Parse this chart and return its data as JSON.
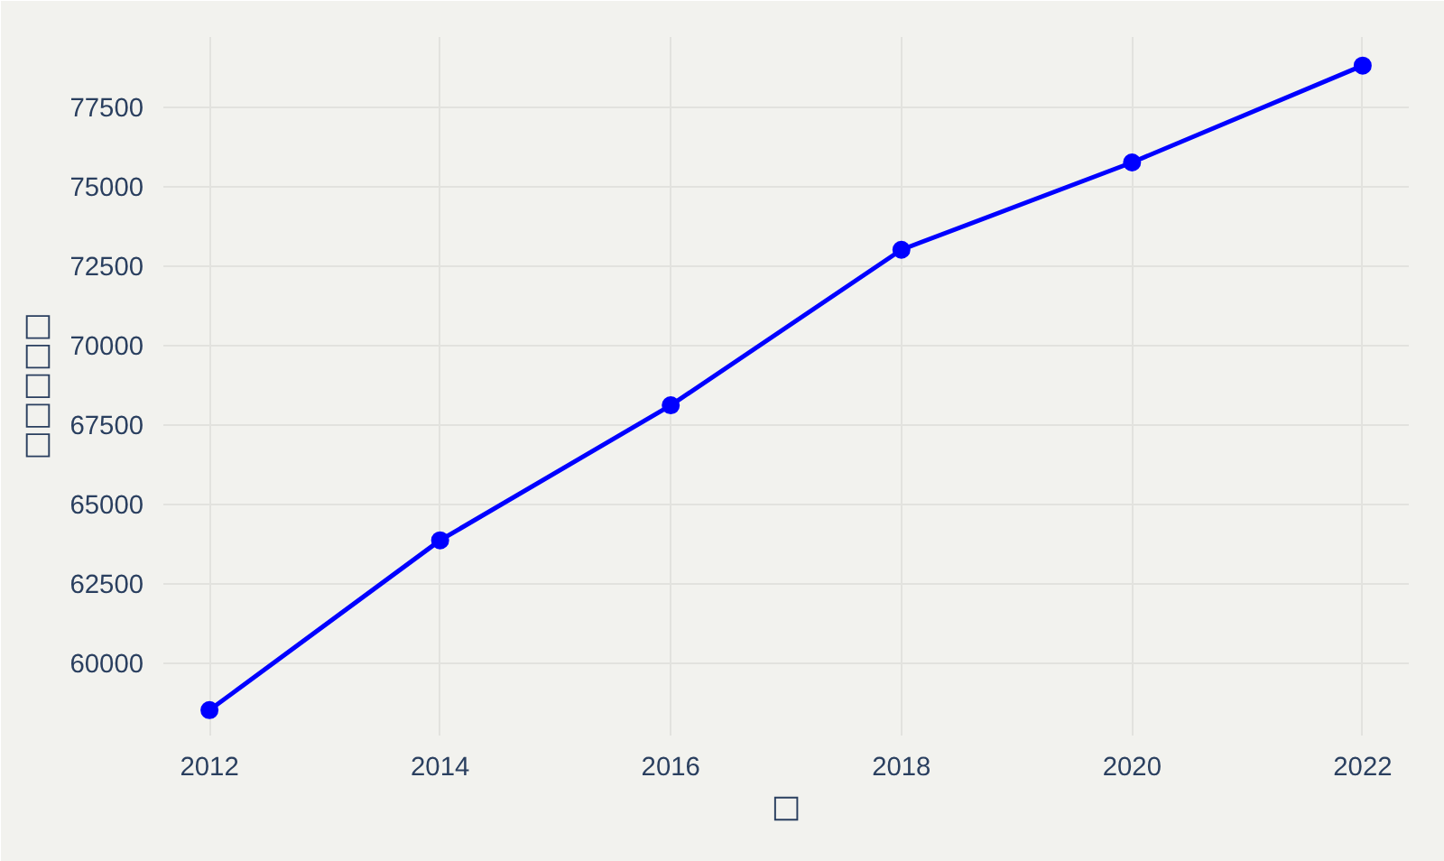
{
  "chart_data": {
    "type": "line",
    "xlabel": "□",
    "ylabel": "□□□□□",
    "x": [
      2012,
      2014,
      2016,
      2018,
      2020,
      2022
    ],
    "series": [
      {
        "color": "#0000ff",
        "values": [
          58500,
          63850,
          68100,
          73000,
          75750,
          78800
        ]
      }
    ],
    "xlim": [
      2011.6,
      2022.4
    ],
    "xticks": [
      2012,
      2014,
      2016,
      2018,
      2020,
      2022
    ],
    "ylim": [
      57700,
      79700
    ],
    "yticks": [
      60000,
      62500,
      65000,
      67500,
      70000,
      72500,
      75000,
      77500
    ],
    "grid": true,
    "marker": "circle",
    "line_style": "solid"
  }
}
